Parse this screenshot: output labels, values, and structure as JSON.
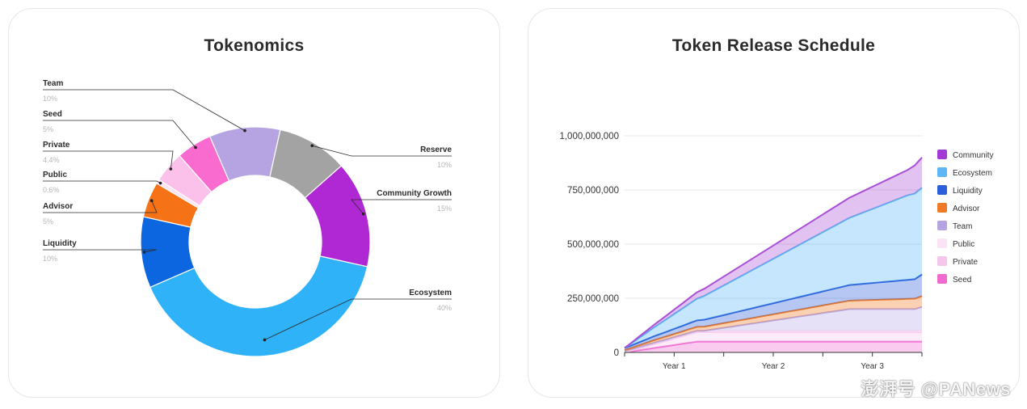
{
  "watermark": "澎湃号 @PANews",
  "chart_data": [
    {
      "type": "pie",
      "style": "donut",
      "title": "Tokenomics",
      "slices": [
        {
          "label": "Team",
          "pct_label": "10%",
          "value": 10,
          "color": "#b6a4e2"
        },
        {
          "label": "Reserve",
          "pct_label": "10%",
          "value": 10,
          "color": "#a3a3a3"
        },
        {
          "label": "Community Growth",
          "pct_label": "15%",
          "value": 15,
          "color": "#b028d4"
        },
        {
          "label": "Ecosystem",
          "pct_label": "40%",
          "value": 40,
          "color": "#2fb2f7"
        },
        {
          "label": "Liquidity",
          "pct_label": "10%",
          "value": 10,
          "color": "#0b66e0"
        },
        {
          "label": "Advisor",
          "pct_label": "5%",
          "value": 5,
          "color": "#f57216"
        },
        {
          "label": "Public",
          "pct_label": "0.6%",
          "value": 0.6,
          "color": "#fbe3f6"
        },
        {
          "label": "Private",
          "pct_label": "4.4%",
          "value": 4.4,
          "color": "#fbc1ea"
        },
        {
          "label": "Seed",
          "pct_label": "5%",
          "value": 5,
          "color": "#fa6bd0"
        }
      ]
    },
    {
      "type": "area",
      "stacked": true,
      "title": "Token Release Schedule",
      "x_tick_labels": [
        "Year 1",
        "Year 2",
        "Year 3"
      ],
      "y_ticks": [
        0,
        250000000,
        500000000,
        750000000,
        1000000000
      ],
      "y_tick_labels": [
        "0",
        "250,000,000",
        "500,000,000",
        "750,000,000",
        "1,000,000,000"
      ],
      "ylim": [
        0,
        1000000000
      ],
      "x_months": [
        0,
        1,
        2,
        3,
        4,
        5,
        6,
        7,
        8,
        9,
        10,
        11,
        12,
        13,
        14,
        15,
        16,
        17,
        18,
        19,
        20,
        21,
        22,
        23,
        24,
        25,
        26,
        27,
        28,
        29,
        30,
        31,
        32,
        33,
        34,
        35,
        36,
        37,
        38,
        39,
        40,
        41
      ],
      "legend_position": "right",
      "series": [
        {
          "name": "Seed",
          "color": "#f06ad0",
          "values": [
            0,
            5,
            10,
            15,
            20,
            25,
            30,
            35,
            40,
            45,
            50,
            50,
            50,
            50,
            50,
            50,
            50,
            50,
            50,
            50,
            50,
            50,
            50,
            50,
            50,
            50,
            50,
            50,
            50,
            50,
            50,
            50,
            50,
            50,
            50,
            50,
            50,
            50,
            50,
            50,
            50,
            50
          ]
        },
        {
          "name": "Private",
          "color": "#f6c6ea",
          "values": [
            0,
            4,
            9,
            13,
            18,
            22,
            26,
            31,
            35,
            40,
            44,
            44,
            44,
            44,
            44,
            44,
            44,
            44,
            44,
            44,
            44,
            44,
            44,
            44,
            44,
            44,
            44,
            44,
            44,
            44,
            44,
            44,
            44,
            44,
            44,
            44,
            44,
            44,
            44,
            44,
            44,
            44
          ]
        },
        {
          "name": "Public",
          "color": "#fbe4f5",
          "values": [
            6,
            6,
            6,
            6,
            6,
            6,
            6,
            6,
            6,
            6,
            6,
            6,
            6,
            6,
            6,
            6,
            6,
            6,
            6,
            6,
            6,
            6,
            6,
            6,
            6,
            6,
            6,
            6,
            6,
            6,
            6,
            6,
            6,
            6,
            6,
            6,
            6,
            6,
            6,
            6,
            6,
            6
          ]
        },
        {
          "name": "Team",
          "color": "#b6a8e6",
          "values": [
            0,
            0,
            0,
            0,
            0,
            0,
            0,
            0,
            0,
            0,
            0,
            0,
            5,
            10,
            15,
            20,
            25,
            30,
            35,
            40,
            45,
            50,
            55,
            60,
            65,
            70,
            75,
            80,
            85,
            90,
            95,
            100,
            100,
            100,
            100,
            100,
            100,
            100,
            100,
            100,
            100,
            110
          ]
        },
        {
          "name": "Advisor",
          "color": "#f07a26",
          "values": [
            5,
            6,
            8,
            10,
            12,
            13,
            14,
            15,
            16,
            17,
            18,
            19,
            20,
            21,
            22,
            23,
            24,
            25,
            26,
            27,
            28,
            29,
            30,
            31,
            32,
            33,
            34,
            35,
            36,
            37,
            38,
            39,
            40,
            41,
            42,
            43,
            44,
            45,
            46,
            47,
            48,
            50
          ]
        },
        {
          "name": "Liquidity",
          "color": "#2b5fd9",
          "values": [
            10,
            12,
            14,
            16,
            18,
            20,
            22,
            24,
            26,
            28,
            30,
            32,
            34,
            36,
            38,
            40,
            42,
            44,
            46,
            48,
            50,
            52,
            54,
            56,
            58,
            60,
            62,
            64,
            66,
            68,
            70,
            72,
            74,
            76,
            78,
            80,
            82,
            84,
            86,
            88,
            90,
            100
          ]
        },
        {
          "name": "Ecosystem",
          "color": "#5ab8f5",
          "values": [
            0,
            10,
            20,
            30,
            40,
            50,
            60,
            70,
            80,
            90,
            100,
            110,
            120,
            130,
            140,
            150,
            160,
            170,
            180,
            190,
            200,
            210,
            220,
            230,
            240,
            250,
            260,
            270,
            280,
            290,
            300,
            310,
            320,
            330,
            340,
            350,
            360,
            370,
            380,
            390,
            395,
            400
          ]
        },
        {
          "name": "Community",
          "color": "#a94fd6",
          "values": [
            0,
            3,
            6,
            9,
            12,
            15,
            18,
            21,
            24,
            27,
            30,
            33,
            36,
            39,
            42,
            45,
            48,
            51,
            54,
            57,
            60,
            63,
            66,
            69,
            72,
            75,
            78,
            81,
            84,
            87,
            90,
            93,
            96,
            99,
            102,
            105,
            108,
            111,
            114,
            117,
            130,
            140
          ]
        }
      ],
      "series_unit": "millions of tokens",
      "legend_order": [
        "Community",
        "Ecosystem",
        "Liquidity",
        "Advisor",
        "Team",
        "Public",
        "Private",
        "Seed"
      ]
    }
  ]
}
